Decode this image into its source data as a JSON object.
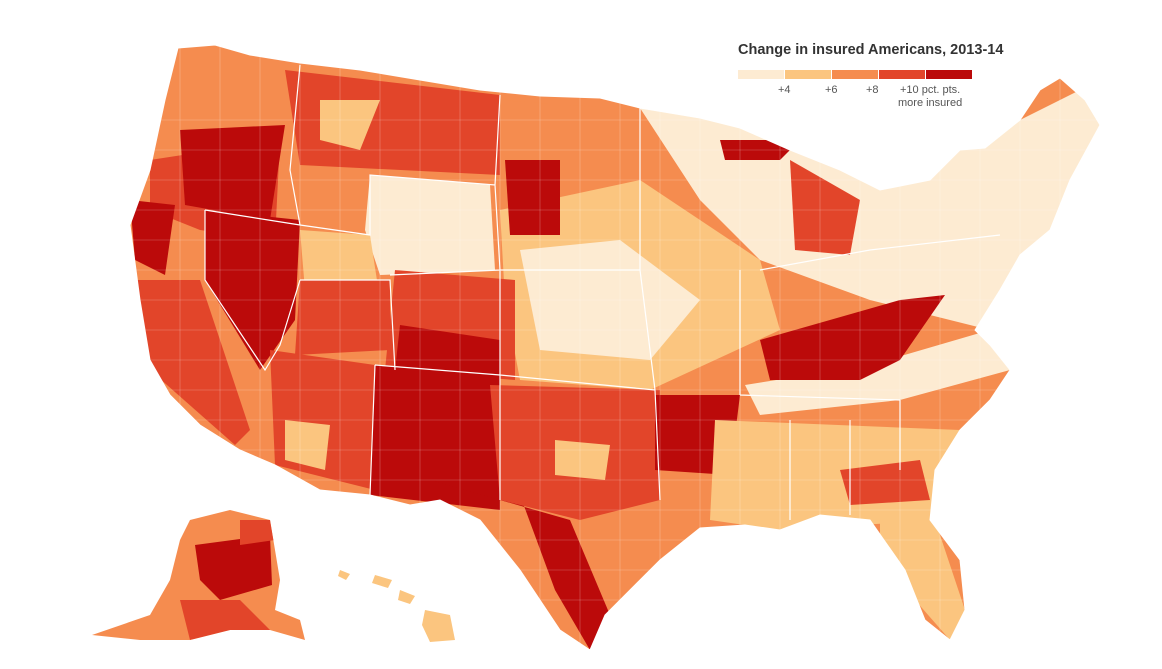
{
  "legend": {
    "title": "Change in insured Americans, 2013-14",
    "tick_labels": [
      "+4",
      "+6",
      "+8"
    ],
    "last_tick_line1": "+10 pct. pts.",
    "last_tick_line2": "more insured",
    "bins": [
      {
        "range": "< +4",
        "color": "#fdebd2"
      },
      {
        "range": "+4 to +6",
        "color": "#fbc57f"
      },
      {
        "range": "+6 to +8",
        "color": "#f58c4f"
      },
      {
        "range": "+8 to +10",
        "color": "#e2452a"
      },
      {
        "range": "+10 or more",
        "color": "#bb0a0a"
      }
    ]
  },
  "map": {
    "type": "choropleth",
    "geography": "U.S. counties",
    "regions": [
      {
        "name": "Pacific Northwest",
        "bin": 3
      },
      {
        "name": "Oregon interior",
        "bin": 4
      },
      {
        "name": "Northern California coast",
        "bin": 4
      },
      {
        "name": "California",
        "bin": 3
      },
      {
        "name": "Nevada",
        "bin": 4
      },
      {
        "name": "Idaho / Montana",
        "bin": 3
      },
      {
        "name": "Wyoming",
        "bin": 0
      },
      {
        "name": "Utah",
        "bin": 2
      },
      {
        "name": "Arizona",
        "bin": 3
      },
      {
        "name": "Colorado",
        "bin": 3
      },
      {
        "name": "New Mexico",
        "bin": 4
      },
      {
        "name": "Texas",
        "bin": 3
      },
      {
        "name": "South Texas",
        "bin": 4
      },
      {
        "name": "Great Plains",
        "bin": 1
      },
      {
        "name": "Upper Midwest",
        "bin": 1
      },
      {
        "name": "Michigan",
        "bin": 3
      },
      {
        "name": "Arkansas",
        "bin": 4
      },
      {
        "name": "Louisiana / Mississippi",
        "bin": 2
      },
      {
        "name": "Kentucky / West Virginia",
        "bin": 4
      },
      {
        "name": "Tennessee / Virginia",
        "bin": 0
      },
      {
        "name": "Southeast",
        "bin": 2
      },
      {
        "name": "Florida",
        "bin": 2
      },
      {
        "name": "Northeast",
        "bin": 0
      },
      {
        "name": "Alaska",
        "bin": 3
      },
      {
        "name": "Hawaii",
        "bin": 1
      }
    ]
  }
}
